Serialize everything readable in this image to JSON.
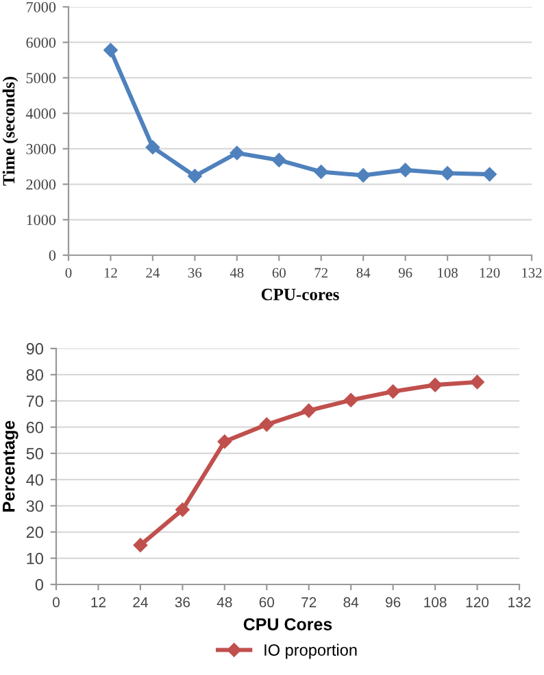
{
  "chart_data": [
    {
      "type": "line",
      "xlabel": "CPU-cores",
      "ylabel": "Time (seconds)",
      "x": [
        12,
        24,
        36,
        48,
        60,
        72,
        84,
        96,
        108,
        120
      ],
      "series": [
        {
          "color": "#4f81bd",
          "values": [
            5780,
            3040,
            2230,
            2880,
            2680,
            2350,
            2250,
            2400,
            2310,
            2280
          ]
        }
      ],
      "xlim": [
        0,
        132
      ],
      "xticks": [
        0,
        12,
        24,
        36,
        48,
        60,
        72,
        84,
        96,
        108,
        120,
        132
      ],
      "ylim": [
        0,
        7000
      ],
      "yticks": [
        0,
        1000,
        2000,
        3000,
        4000,
        5000,
        6000,
        7000
      ],
      "grid": "y",
      "marker": "diamond",
      "line_style": "solid",
      "legend": false
    },
    {
      "type": "line",
      "xlabel": "CPU Cores",
      "ylabel": "Percentage",
      "x": [
        24,
        36,
        48,
        60,
        72,
        84,
        96,
        108,
        120
      ],
      "series": [
        {
          "name": "IO proportion",
          "color": "#c0504d",
          "values": [
            15,
            28.5,
            54.5,
            61,
            66.3,
            70.3,
            73.6,
            76.1,
            77.2
          ]
        }
      ],
      "xlim": [
        0,
        132
      ],
      "xticks": [
        0,
        12,
        24,
        36,
        48,
        60,
        72,
        84,
        96,
        108,
        120,
        132
      ],
      "ylim": [
        0,
        90
      ],
      "yticks": [
        0,
        10,
        20,
        30,
        40,
        50,
        60,
        70,
        80,
        90
      ],
      "grid": "y",
      "marker": "diamond",
      "line_style": "solid",
      "legend": "bottom"
    }
  ]
}
